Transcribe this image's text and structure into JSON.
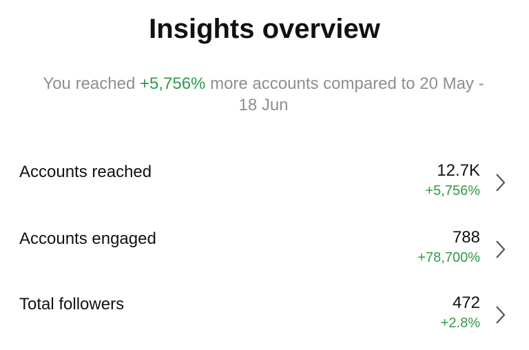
{
  "header": {
    "title": "Insights overview",
    "subtitle": {
      "prefix": "You reached",
      "highlight": "+5,756%",
      "suffix": "more accounts compared to 20 May - 18 Jun"
    }
  },
  "rows": [
    {
      "label": "Accounts reached",
      "value": "12.7K",
      "change": "+5,756%"
    },
    {
      "label": "Accounts engaged",
      "value": "788",
      "change": "+78,700%"
    },
    {
      "label": "Total followers",
      "value": "472",
      "change": "+2.8%"
    }
  ]
}
